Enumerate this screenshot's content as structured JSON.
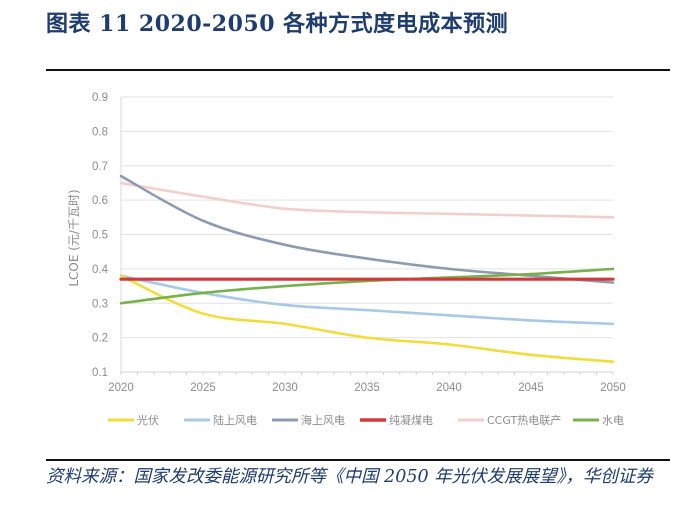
{
  "header": {
    "title": "图表 11  2020-2050 各种方式度电成本预测"
  },
  "footer": {
    "source": "资料来源：国家发改委能源研究所等《中国 2050 年光伏发展展望》，华创证券"
  },
  "chart_data": {
    "type": "line",
    "title": "",
    "xlabel": "",
    "ylabel": "LCOE (元/千瓦时)",
    "x": [
      2020,
      2025,
      2030,
      2035,
      2040,
      2045,
      2050
    ],
    "x_tick_labels": [
      "2020",
      "2025",
      "2030",
      "2035",
      "2040",
      "2045",
      "2050"
    ],
    "ylim": [
      0.1,
      0.9
    ],
    "y_ticks": [
      0.1,
      0.2,
      0.3,
      0.4,
      0.5,
      0.6,
      0.7,
      0.8,
      0.9
    ],
    "y_tick_labels": [
      "0.1",
      "0.2",
      "0.3",
      "0.4",
      "0.5",
      "0.6",
      "0.7",
      "0.8",
      "0.9"
    ],
    "grid": true,
    "legend_position": "bottom",
    "series": [
      {
        "name": "光伏",
        "color": "#f2dc3c",
        "values": [
          0.38,
          0.27,
          0.24,
          0.2,
          0.18,
          0.15,
          0.13
        ]
      },
      {
        "name": "陆上风电",
        "color": "#a9c8e6",
        "values": [
          0.38,
          0.33,
          0.295,
          0.28,
          0.265,
          0.25,
          0.24
        ]
      },
      {
        "name": "海上风电",
        "color": "#8d9bb0",
        "values": [
          0.67,
          0.54,
          0.47,
          0.43,
          0.4,
          0.38,
          0.36
        ]
      },
      {
        "name": "纯凝煤电",
        "color": "#d23a3a",
        "values": [
          0.37,
          0.37,
          0.37,
          0.37,
          0.37,
          0.37,
          0.37
        ]
      },
      {
        "name": "CCGT热电联产",
        "color": "#f2cfcc",
        "values": [
          0.65,
          0.61,
          0.575,
          0.565,
          0.56,
          0.555,
          0.55
        ]
      },
      {
        "name": "水电",
        "color": "#79b04e",
        "values": [
          0.3,
          0.33,
          0.35,
          0.365,
          0.375,
          0.385,
          0.4
        ]
      }
    ]
  }
}
